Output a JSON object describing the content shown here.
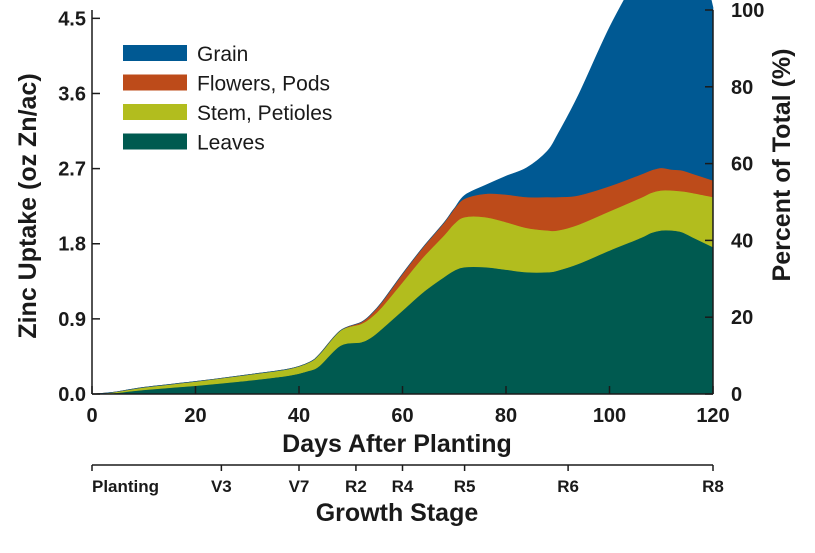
{
  "chart_data": {
    "type": "area",
    "stacked": true,
    "x": [
      0,
      4,
      10,
      20,
      30,
      38,
      42,
      44,
      48,
      52,
      54,
      56,
      60,
      64,
      68,
      70,
      72,
      76,
      80,
      84,
      88,
      90,
      94,
      100,
      106,
      108,
      110,
      112,
      114,
      116,
      120
    ],
    "series": [
      {
        "name": "Leaves",
        "color": "#005a50",
        "values": [
          0,
          0.01,
          0.05,
          0.1,
          0.16,
          0.22,
          0.28,
          0.34,
          0.58,
          0.62,
          0.68,
          0.78,
          1.0,
          1.22,
          1.4,
          1.48,
          1.52,
          1.52,
          1.49,
          1.46,
          1.46,
          1.48,
          1.56,
          1.72,
          1.87,
          1.93,
          1.96,
          1.96,
          1.94,
          1.88,
          1.76
        ]
      },
      {
        "name": "Stem, Petioles",
        "color": "#b2bd1e",
        "values": [
          0,
          0.01,
          0.03,
          0.05,
          0.07,
          0.08,
          0.1,
          0.14,
          0.18,
          0.22,
          0.24,
          0.26,
          0.34,
          0.42,
          0.5,
          0.56,
          0.6,
          0.6,
          0.57,
          0.53,
          0.5,
          0.48,
          0.47,
          0.47,
          0.48,
          0.48,
          0.48,
          0.48,
          0.49,
          0.53,
          0.6
        ]
      },
      {
        "name": "Flowers, Pods",
        "color": "#bd4b1a",
        "values": [
          0,
          0,
          0,
          0,
          0,
          0,
          0,
          0,
          0,
          0.02,
          0.04,
          0.06,
          0.1,
          0.12,
          0.15,
          0.18,
          0.22,
          0.28,
          0.33,
          0.37,
          0.4,
          0.4,
          0.35,
          0.3,
          0.28,
          0.27,
          0.27,
          0.25,
          0.25,
          0.23,
          0.2
        ]
      },
      {
        "name": "Grain",
        "color": "#005993",
        "values": [
          0,
          0,
          0,
          0,
          0,
          0,
          0,
          0,
          0,
          0,
          0,
          0,
          0,
          0,
          0,
          0,
          0.04,
          0.1,
          0.22,
          0.35,
          0.55,
          0.75,
          1.2,
          1.9,
          2.45,
          2.65,
          2.8,
          2.93,
          2.99,
          3.01,
          2.07
        ]
      }
    ],
    "legend": [
      "Grain",
      "Flowers, Pods",
      "Stem, Petioles",
      "Leaves"
    ],
    "legend_position": "top-left",
    "xlabel": "Days After Planting",
    "ylabel": "Zinc Uptake (oz Zn/ac)",
    "ylabel_right": "Percent of Total (%)",
    "xlim": [
      0,
      120
    ],
    "ylim": [
      0,
      4.6
    ],
    "ylim_right": [
      0,
      100
    ],
    "xticks": [
      0,
      20,
      40,
      60,
      80,
      100,
      120
    ],
    "yticks": [
      0.0,
      0.9,
      1.8,
      2.7,
      3.6,
      4.5
    ],
    "ytick_labels": [
      "0.0",
      "0.9",
      "1.8",
      "2.7",
      "3.6",
      "4.5"
    ],
    "yticks_right": [
      0,
      20,
      40,
      60,
      80,
      100
    ],
    "growth_stage": {
      "title": "Growth Stage",
      "stages": [
        {
          "label": "Planting",
          "day": 0
        },
        {
          "label": "V3",
          "day": 25
        },
        {
          "label": "V7",
          "day": 40
        },
        {
          "label": "R2",
          "day": 51
        },
        {
          "label": "R4",
          "day": 60
        },
        {
          "label": "R5",
          "day": 72
        },
        {
          "label": "R6",
          "day": 92
        },
        {
          "label": "R8",
          "day": 120
        }
      ]
    }
  }
}
